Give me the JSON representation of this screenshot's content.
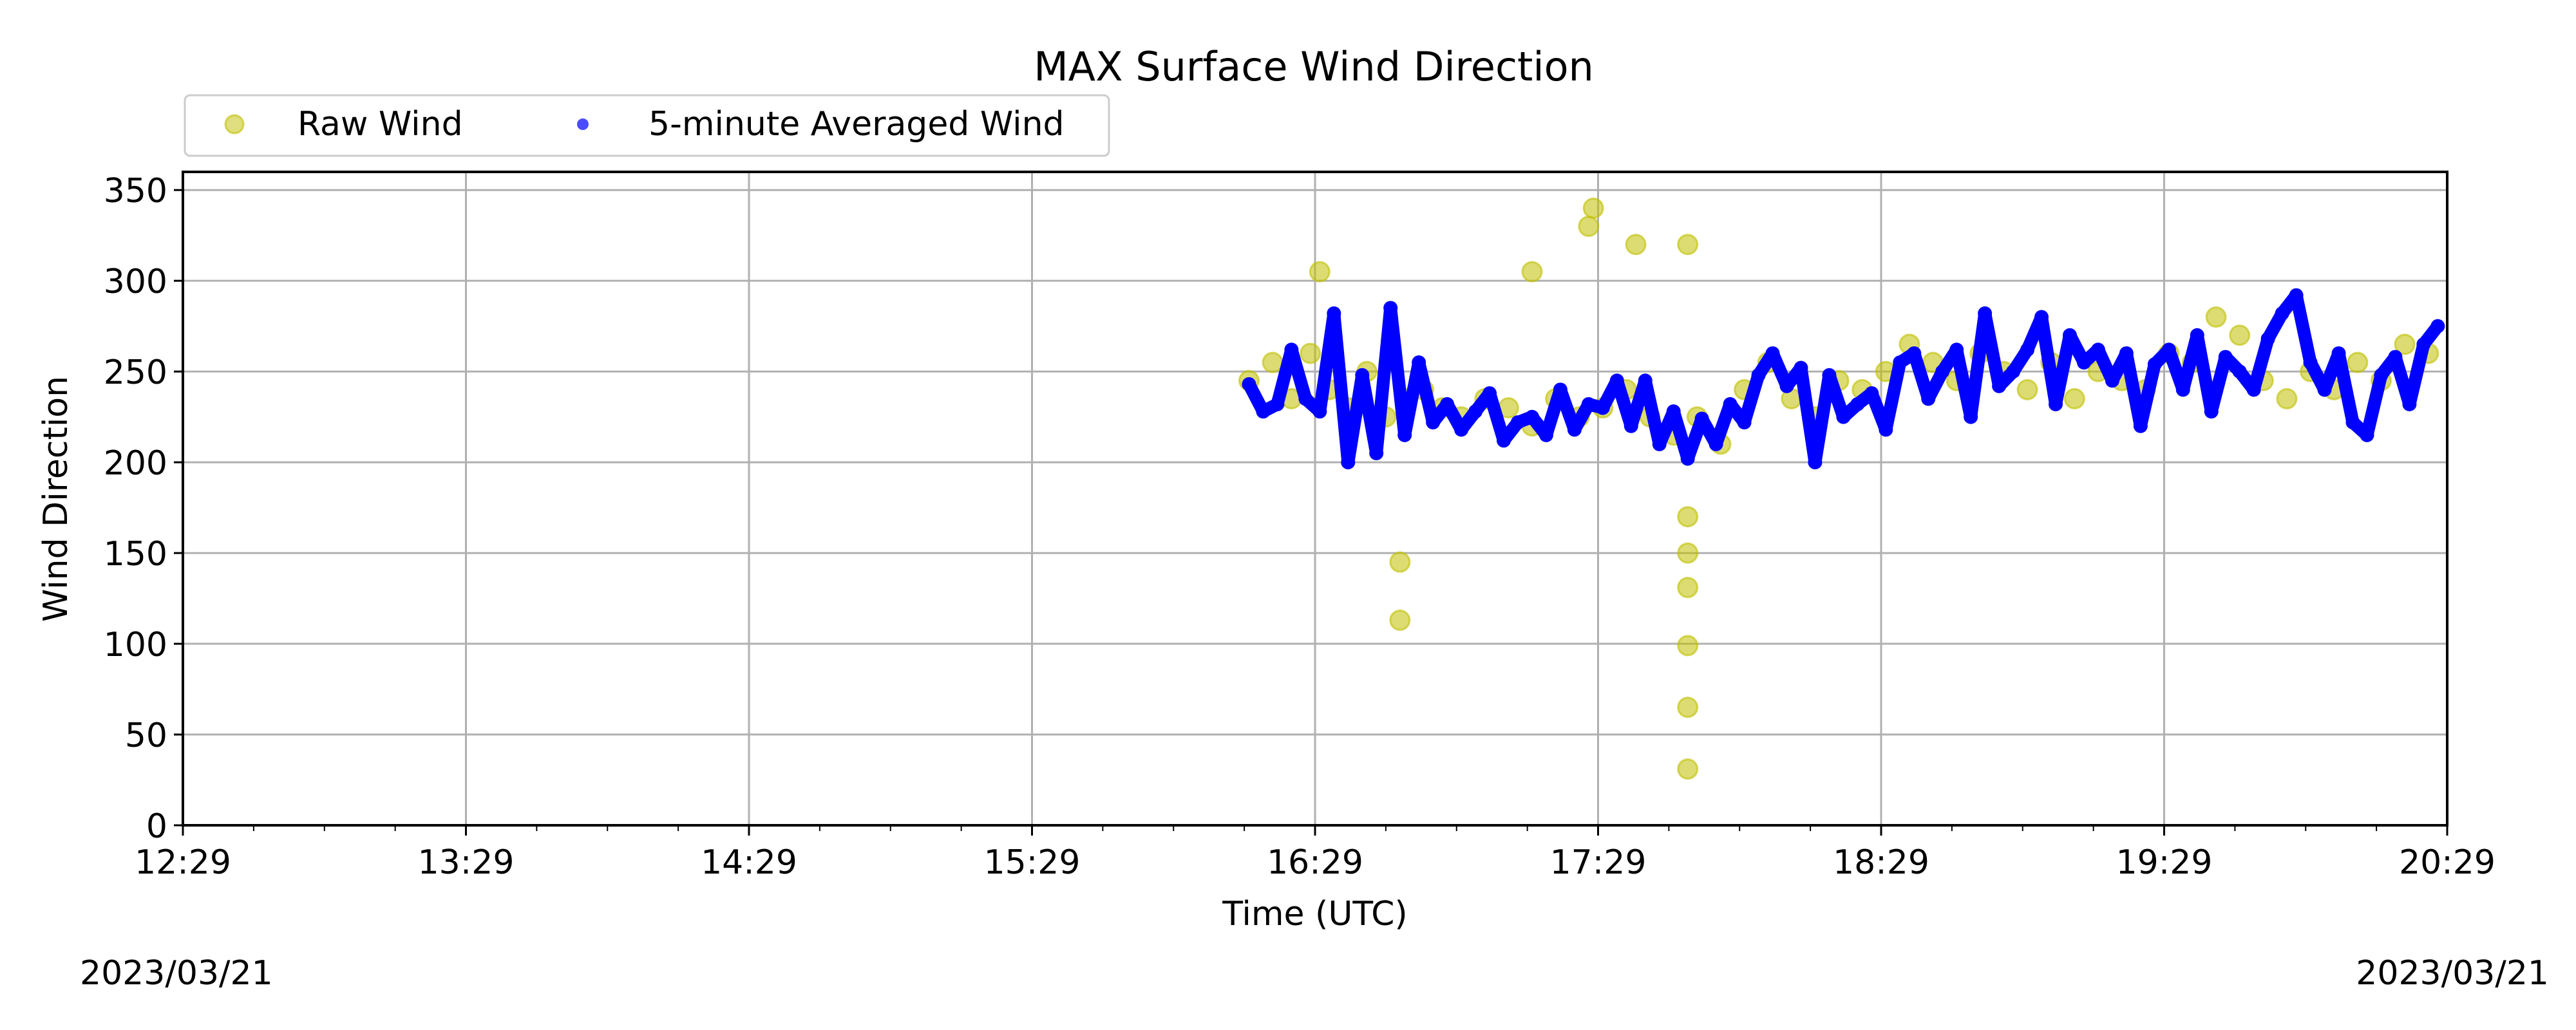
{
  "chart_data": {
    "type": "scatter",
    "title": "MAX Surface Wind Direction",
    "xlabel": "Time (UTC)",
    "ylabel": "Wind Direction",
    "ylim": [
      0,
      360
    ],
    "yticks": [
      0,
      50,
      100,
      150,
      200,
      250,
      300,
      350
    ],
    "xlim": [
      "12:29",
      "20:29"
    ],
    "xticks": [
      "12:29",
      "13:29",
      "14:29",
      "15:29",
      "16:29",
      "17:29",
      "18:29",
      "19:29",
      "20:29"
    ],
    "grid": true,
    "legend_placement": "top-left",
    "start_date": "2023/03/21",
    "end_date": "2023/03/21",
    "colors": {
      "raw": "#bfbf00",
      "averaged": "#0000ff"
    },
    "series": [
      {
        "name": "Raw Wind",
        "style": "scatter",
        "x": [
          "16:15",
          "16:20",
          "16:24",
          "16:28",
          "16:32",
          "16:36",
          "16:40",
          "16:44",
          "16:48",
          "16:52",
          "16:56",
          "17:00",
          "17:05",
          "17:10",
          "17:15",
          "17:20",
          "17:25",
          "17:30",
          "17:35",
          "17:40",
          "17:45",
          "17:50",
          "17:55",
          "18:00",
          "18:05",
          "18:10",
          "18:15",
          "18:20",
          "18:25",
          "18:30",
          "18:35",
          "18:40",
          "18:45",
          "18:50",
          "18:55",
          "19:00",
          "19:05",
          "19:10",
          "19:15",
          "19:20",
          "19:25",
          "19:30",
          "19:35",
          "19:40",
          "19:45",
          "19:50",
          "19:55",
          "20:00",
          "20:05",
          "20:10",
          "20:15",
          "20:20",
          "20:25",
          "16:30",
          "16:47",
          "16:47",
          "17:15",
          "17:27",
          "17:28",
          "17:37",
          "17:48",
          "17:48",
          "17:48",
          "17:48",
          "17:48",
          "17:48",
          "17:48"
        ],
        "y": [
          245,
          255,
          235,
          260,
          240,
          230,
          250,
          225,
          235,
          240,
          230,
          225,
          235,
          230,
          220,
          235,
          225,
          230,
          240,
          225,
          215,
          225,
          210,
          240,
          255,
          235,
          225,
          245,
          240,
          250,
          265,
          255,
          245,
          260,
          250,
          240,
          255,
          235,
          250,
          245,
          240,
          260,
          255,
          280,
          270,
          245,
          235,
          250,
          240,
          255,
          245,
          265,
          260,
          305,
          145,
          113,
          305,
          330,
          340,
          320,
          320,
          131,
          99,
          65,
          31,
          150,
          170
        ]
      },
      {
        "name": "5-minute Averaged Wind",
        "style": "line",
        "x": [
          "16:15",
          "16:18",
          "16:21",
          "16:24",
          "16:27",
          "16:30",
          "16:33",
          "16:36",
          "16:39",
          "16:42",
          "16:45",
          "16:48",
          "16:51",
          "16:54",
          "16:57",
          "17:00",
          "17:03",
          "17:06",
          "17:09",
          "17:12",
          "17:15",
          "17:18",
          "17:21",
          "17:24",
          "17:27",
          "17:30",
          "17:33",
          "17:36",
          "17:39",
          "17:42",
          "17:45",
          "17:48",
          "17:51",
          "17:54",
          "17:57",
          "18:00",
          "18:03",
          "18:06",
          "18:09",
          "18:12",
          "18:15",
          "18:18",
          "18:21",
          "18:24",
          "18:27",
          "18:30",
          "18:33",
          "18:36",
          "18:39",
          "18:42",
          "18:45",
          "18:48",
          "18:51",
          "18:54",
          "18:57",
          "19:00",
          "19:03",
          "19:06",
          "19:09",
          "19:12",
          "19:15",
          "19:18",
          "19:21",
          "19:24",
          "19:27",
          "19:30",
          "19:33",
          "19:36",
          "19:39",
          "19:42",
          "19:45",
          "19:48",
          "19:51",
          "19:54",
          "19:57",
          "20:00",
          "20:03",
          "20:06",
          "20:09",
          "20:12",
          "20:15",
          "20:18",
          "20:21",
          "20:24",
          "20:27"
        ],
        "y": [
          243,
          228,
          232,
          262,
          235,
          228,
          282,
          200,
          248,
          205,
          285,
          215,
          255,
          222,
          232,
          218,
          228,
          238,
          212,
          222,
          225,
          215,
          240,
          218,
          232,
          230,
          245,
          220,
          245,
          210,
          228,
          202,
          224,
          210,
          232,
          222,
          248,
          260,
          242,
          252,
          200,
          248,
          225,
          232,
          238,
          218,
          255,
          260,
          235,
          250,
          262,
          225,
          282,
          242,
          250,
          262,
          280,
          232,
          270,
          255,
          262,
          245,
          260,
          220,
          254,
          262,
          240,
          270,
          228,
          258,
          250,
          240,
          268,
          282,
          292,
          255,
          240,
          260,
          222,
          215,
          248,
          258,
          232,
          265,
          275
        ]
      }
    ]
  }
}
